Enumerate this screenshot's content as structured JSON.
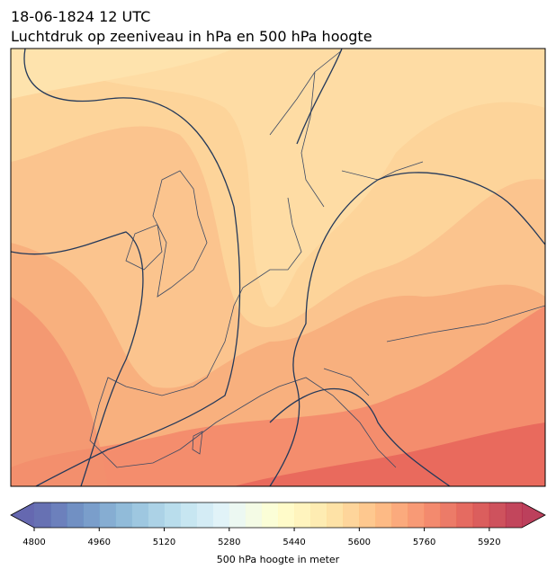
{
  "title": "18-06-1824 12 UTC",
  "subtitle": "Luchtdruk op zeeniveau in hPa en 500 hPa hoogte",
  "colorbar": {
    "label": "500 hPa hoogte in meter",
    "range": [
      4800,
      6000
    ],
    "level_step": 40,
    "ticks": [
      4800,
      4960,
      5120,
      5280,
      5440,
      5600,
      5760,
      5920
    ],
    "colormap": "RdYlBu_r",
    "extend": "both"
  }
}
